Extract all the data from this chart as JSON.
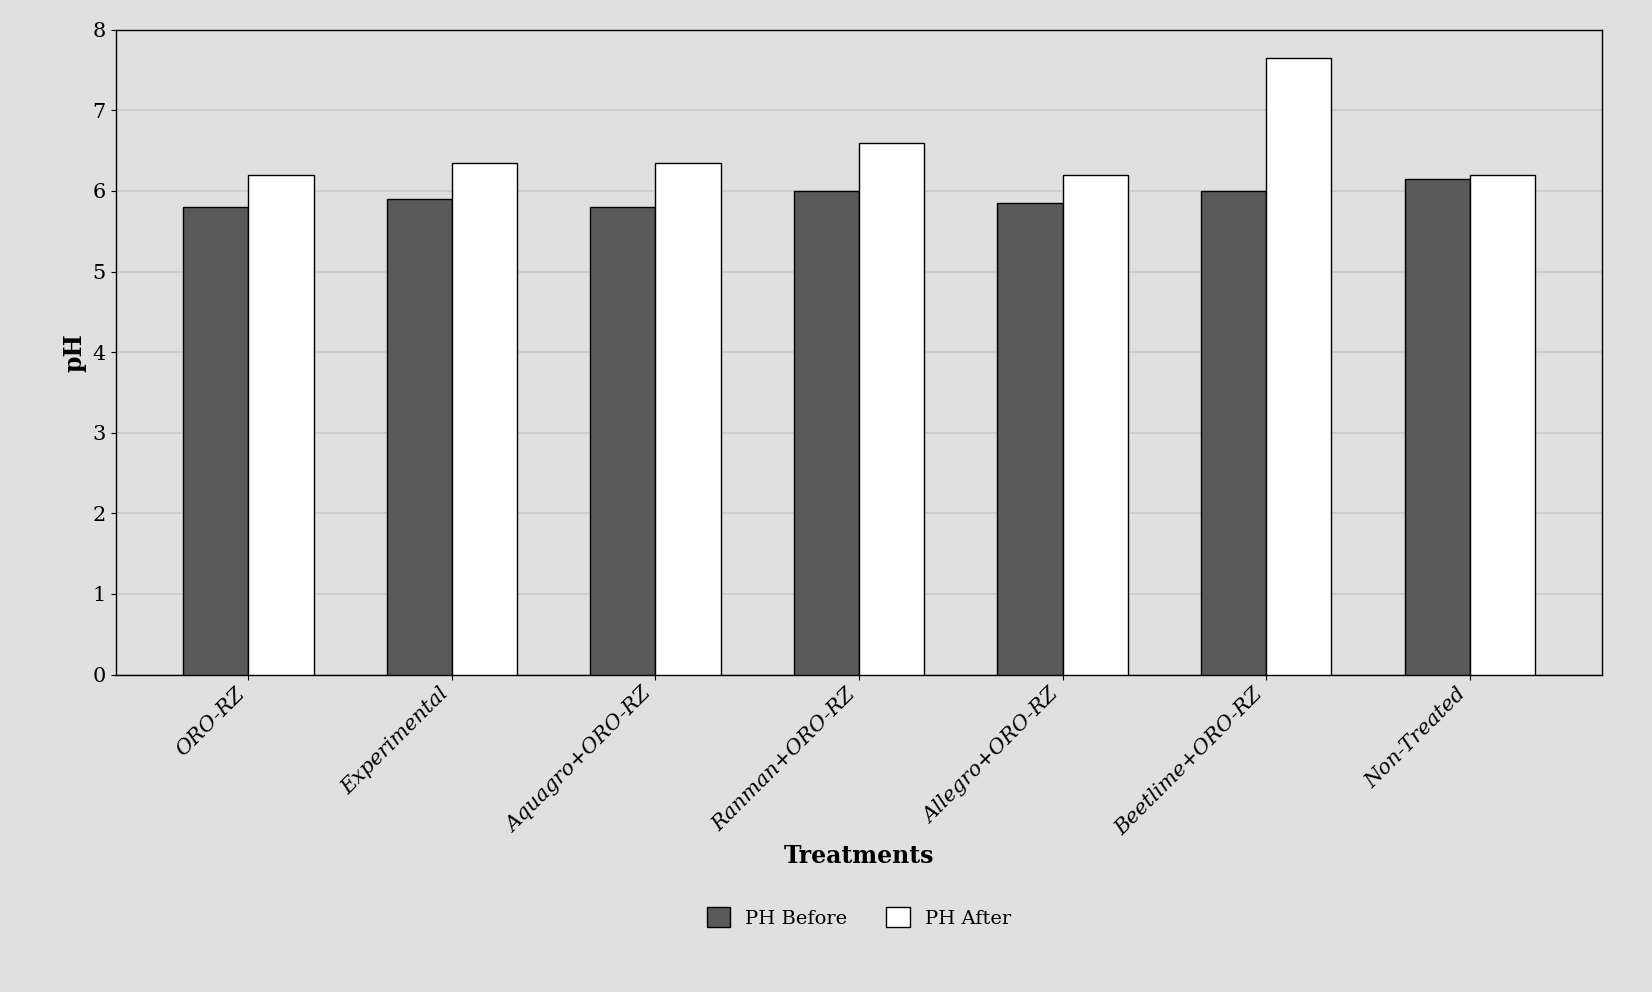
{
  "categories": [
    "ORO-RZ",
    "Experimental",
    "Aquagro+ORO-RZ",
    "Ranman+ORO-RZ",
    "Allegro+ORO-RZ",
    "Beetlime+ORO-RZ",
    "Non-Treated"
  ],
  "ph_before": [
    5.8,
    5.9,
    5.8,
    6.0,
    5.85,
    6.0,
    6.15
  ],
  "ph_after": [
    6.2,
    6.35,
    6.35,
    6.6,
    6.2,
    7.65,
    6.2
  ],
  "bar_color_before": "#595959",
  "bar_color_after": "#ffffff",
  "bar_edgecolor": "#000000",
  "ylabel": "pH",
  "xlabel": "Treatments",
  "ylim": [
    0,
    8
  ],
  "yticks": [
    0,
    1,
    2,
    3,
    4,
    5,
    6,
    7,
    8
  ],
  "legend_before": "PH Before",
  "legend_after": "PH After",
  "background_color": "#e0e0e0",
  "plot_background_color": "#e0e0e0",
  "bar_width": 0.32,
  "xlabel_fontsize": 17,
  "ylabel_fontsize": 17,
  "tick_fontsize": 15,
  "legend_fontsize": 14,
  "xlabel_fontweight": "bold",
  "grid_color": "#c8c8c8",
  "grid_linewidth": 1.2
}
